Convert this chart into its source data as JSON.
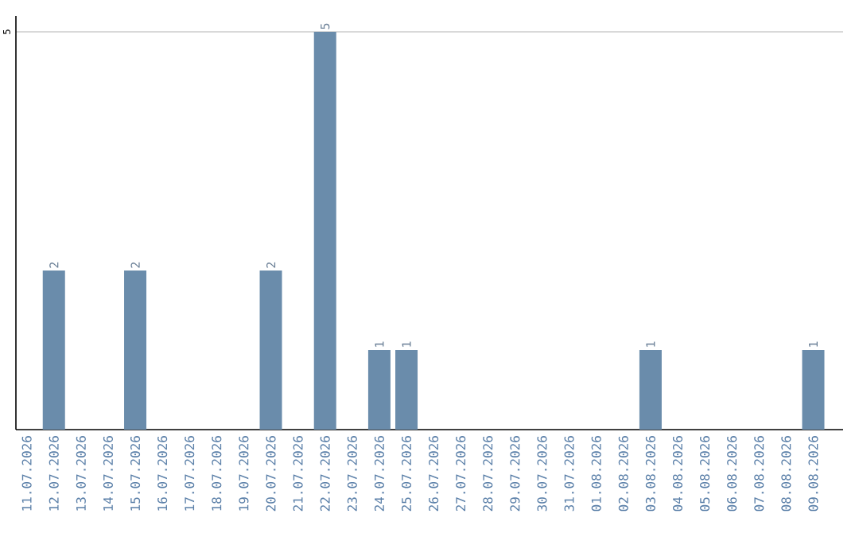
{
  "chart_data": {
    "type": "bar",
    "categories": [
      "11.07.2026",
      "12.07.2026",
      "13.07.2026",
      "14.07.2026",
      "15.07.2026",
      "16.07.2026",
      "17.07.2026",
      "18.07.2026",
      "19.07.2026",
      "20.07.2026",
      "21.07.2026",
      "22.07.2026",
      "23.07.2026",
      "24.07.2026",
      "25.07.2026",
      "26.07.2026",
      "27.07.2026",
      "28.07.2026",
      "29.07.2026",
      "30.07.2026",
      "31.07.2026",
      "01.08.2026",
      "02.08.2026",
      "03.08.2026",
      "04.08.2026",
      "05.08.2026",
      "06.08.2026",
      "07.08.2026",
      "08.08.2026",
      "09.08.2026"
    ],
    "values": [
      0,
      2,
      0,
      0,
      2,
      0,
      0,
      0,
      0,
      2,
      0,
      5,
      0,
      1,
      1,
      0,
      0,
      0,
      0,
      0,
      0,
      0,
      0,
      1,
      0,
      0,
      0,
      0,
      0,
      1
    ],
    "value_labels": [
      null,
      "2",
      null,
      null,
      "2",
      null,
      null,
      null,
      null,
      "2",
      null,
      "5",
      null,
      "1",
      "1",
      null,
      null,
      null,
      null,
      null,
      null,
      null,
      null,
      "1",
      null,
      null,
      null,
      null,
      null,
      "1"
    ],
    "color": "#6a8cab",
    "ylim": [
      0,
      5.2
    ],
    "yticks": [
      5
    ],
    "grid": "y"
  }
}
